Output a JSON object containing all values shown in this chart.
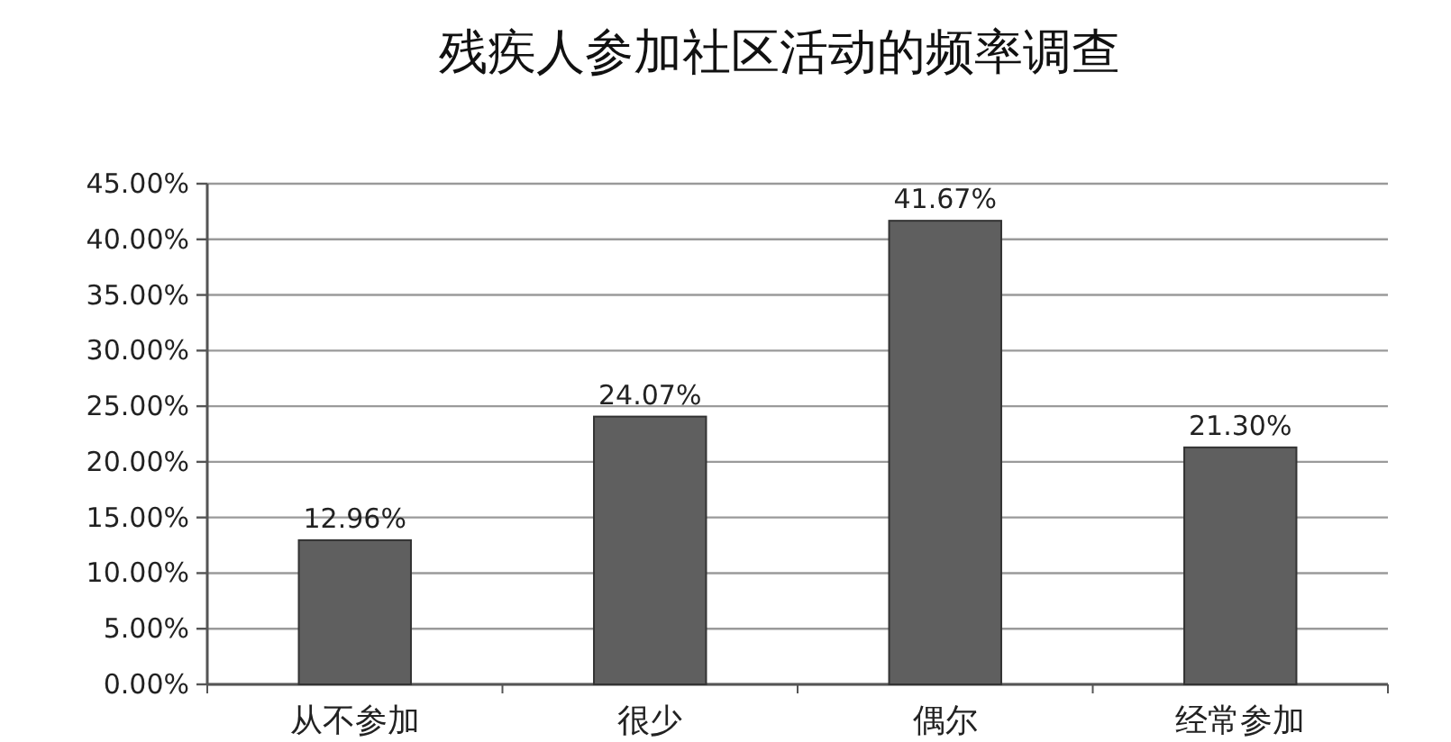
{
  "chart_data": {
    "type": "bar",
    "title": "残疾人参加社区活动的频率调查",
    "categories": [
      "从不参加",
      "很少",
      "偶尔",
      "经常参加"
    ],
    "values": [
      12.96,
      24.07,
      41.67,
      21.3
    ],
    "color": "#5f5f5f",
    "value_labels": [
      "12.96%",
      "24.07%",
      "41.67%",
      "21.30%"
    ],
    "ylim": [
      0,
      45
    ],
    "yticks": [
      {
        "value": 0,
        "label": "0.00%"
      },
      {
        "value": 5,
        "label": "5.00%"
      },
      {
        "value": 10,
        "label": "10.00%"
      },
      {
        "value": 15,
        "label": "15.00%"
      },
      {
        "value": 20,
        "label": "20.00%"
      },
      {
        "value": 25,
        "label": "25.00%"
      },
      {
        "value": 30,
        "label": "30.00%"
      },
      {
        "value": 35,
        "label": "35.00%"
      },
      {
        "value": 40,
        "label": "40.00%"
      },
      {
        "value": 45,
        "label": "45.00%"
      }
    ],
    "grid": "y"
  }
}
